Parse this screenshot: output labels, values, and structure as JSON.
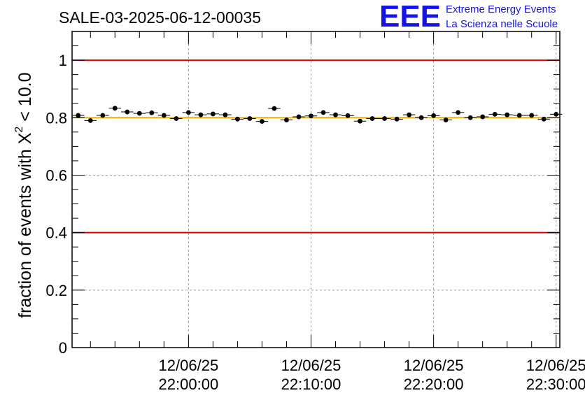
{
  "chart_data": {
    "type": "scatter",
    "title": "SALE-03-2025-06-12-00035",
    "xlabel": "",
    "ylabel": {
      "prefix": "fraction of events with ",
      "symbol": "X",
      "superscript": "2",
      "suffix": " < 10.0"
    },
    "ylim": [
      0,
      1.1
    ],
    "xlim_minutes": [
      -9.5,
      30.3
    ],
    "x_ticks": [
      {
        "minutes": 0,
        "date": "12/06/25",
        "time": "22:00:00"
      },
      {
        "minutes": 10,
        "date": "12/06/25",
        "time": "22:10:00"
      },
      {
        "minutes": 20,
        "date": "12/06/25",
        "time": "22:20:00"
      },
      {
        "minutes": 30,
        "date": "12/06/25",
        "time": "22:30:00"
      }
    ],
    "y_ticks": [
      {
        "value": 0,
        "label": "0"
      },
      {
        "value": 0.2,
        "label": "0.2"
      },
      {
        "value": 0.4,
        "label": "0.4"
      },
      {
        "value": 0.6,
        "label": "0.6"
      },
      {
        "value": 0.8,
        "label": "0.8"
      },
      {
        "value": 1.0,
        "label": "1"
      }
    ],
    "grid": true,
    "reference_lines": [
      {
        "name": "upper-limit",
        "y": 1.0,
        "color": "#e00000"
      },
      {
        "name": "mean",
        "y": 0.8,
        "color": "#f0b400"
      },
      {
        "name": "lower-limit",
        "y": 0.4,
        "color": "#e00000"
      }
    ],
    "series": [
      {
        "name": "fraction",
        "bin_minutes": 1,
        "error": 0.006,
        "x_minutes": [
          -9.0,
          -8.0,
          -7.0,
          -6.0,
          -5.0,
          -4.0,
          -3.0,
          -2.0,
          -1.0,
          0.0,
          1.0,
          2.0,
          3.0,
          4.0,
          5.0,
          6.0,
          7.0,
          8.0,
          9.0,
          10.0,
          11.0,
          12.0,
          13.0,
          14.0,
          15.0,
          16.0,
          17.0,
          18.0,
          19.0,
          20.0,
          21.0,
          22.0,
          23.0,
          24.0,
          25.0,
          26.0,
          27.0,
          28.0,
          29.0,
          30.0
        ],
        "values": [
          0.808,
          0.79,
          0.808,
          0.833,
          0.82,
          0.815,
          0.817,
          0.808,
          0.797,
          0.818,
          0.81,
          0.813,
          0.81,
          0.795,
          0.797,
          0.787,
          0.832,
          0.792,
          0.803,
          0.806,
          0.818,
          0.81,
          0.807,
          0.788,
          0.797,
          0.797,
          0.795,
          0.81,
          0.8,
          0.807,
          0.792,
          0.818,
          0.8,
          0.803,
          0.812,
          0.81,
          0.808,
          0.808,
          0.795,
          0.812
        ]
      }
    ]
  },
  "logo": {
    "mark": "EEE",
    "line1": "Extreme Energy Events",
    "line2": "La Scienza nelle Scuole"
  },
  "colors": {
    "marker": "#000000",
    "upper_lower": "#e00000",
    "mean": "#f0b400",
    "grid": "#a0a0a0",
    "logo": "#1414e6"
  }
}
